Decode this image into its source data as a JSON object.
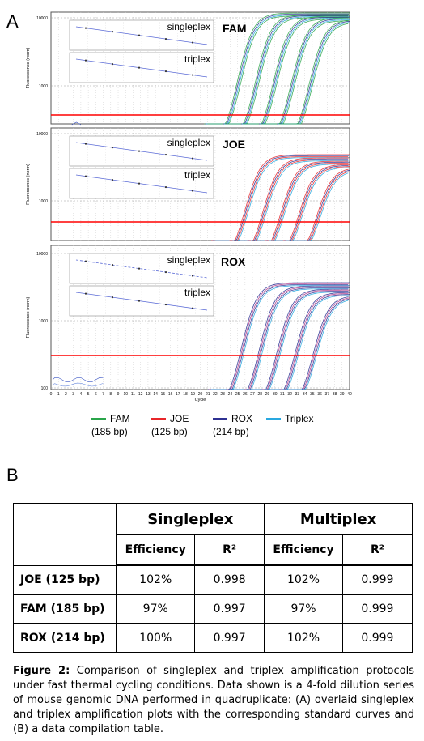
{
  "panels": {
    "a": "A",
    "b": "B"
  },
  "chart_data": [
    {
      "type": "line",
      "title": "FAM",
      "ylabel": "Fluorescence (norm)",
      "yscale": "log",
      "yticks": [
        "10000",
        "1000"
      ],
      "threshold_color": "#ff0000",
      "insets": [
        "singleplex",
        "triplex"
      ]
    },
    {
      "type": "line",
      "title": "JOE",
      "ylabel": "Fluorescence (norm)",
      "yscale": "log",
      "yticks": [
        "10000",
        "1000"
      ],
      "threshold_color": "#ff0000",
      "insets": [
        "singleplex",
        "triplex"
      ]
    },
    {
      "type": "line",
      "title": "ROX",
      "ylabel": "Fluorescence (norm)",
      "xlabel": "Cycle",
      "yscale": "log",
      "yticks": [
        "10000",
        "1000",
        "100"
      ],
      "xlim": [
        0,
        40
      ],
      "xticks": [
        "0",
        "1",
        "2",
        "3",
        "4",
        "5",
        "6",
        "7",
        "8",
        "9",
        "10",
        "11",
        "12",
        "13",
        "14",
        "15",
        "16",
        "17",
        "18",
        "19",
        "20",
        "21",
        "22",
        "23",
        "24",
        "25",
        "26",
        "27",
        "28",
        "29",
        "30",
        "31",
        "32",
        "33",
        "34",
        "35",
        "36",
        "37",
        "38",
        "39",
        "40"
      ],
      "threshold_color": "#ff0000",
      "insets": [
        "singleplex",
        "triplex"
      ]
    }
  ],
  "legend": [
    {
      "label": "FAM",
      "sub": "(185 bp)",
      "color": "#2aa54a"
    },
    {
      "label": "JOE",
      "sub": "(125 bp)",
      "color": "#e8262a"
    },
    {
      "label": "ROX",
      "sub": "(214 bp)",
      "color": "#2e3192"
    },
    {
      "label": "Triplex",
      "sub": "",
      "color": "#29a8e0"
    }
  ],
  "table": {
    "groups": [
      "Singleplex",
      "Multiplex"
    ],
    "subheaders": [
      "Efficiency",
      "R²",
      "Efficiency",
      "R²"
    ],
    "rows": [
      {
        "label": "JOE (125 bp)",
        "values": [
          "102%",
          "0.998",
          "102%",
          "0.999"
        ]
      },
      {
        "label": "FAM (185 bp)",
        "values": [
          "97%",
          "0.997",
          "97%",
          "0.999"
        ]
      },
      {
        "label": "ROX (214 bp)",
        "values": [
          "100%",
          "0.997",
          "102%",
          "0.999"
        ]
      }
    ]
  },
  "caption": {
    "label": "Figure 2:",
    "text": "Comparison of singleplex and triplex amplification protocols under fast thermal cycling conditions. Data shown is a 4-fold dilution series of mouse genomic DNA performed in quadruplicate: (A) overlaid singleplex and triplex amplification plots with the corresponding standard curves and (B) a data compilation table."
  }
}
